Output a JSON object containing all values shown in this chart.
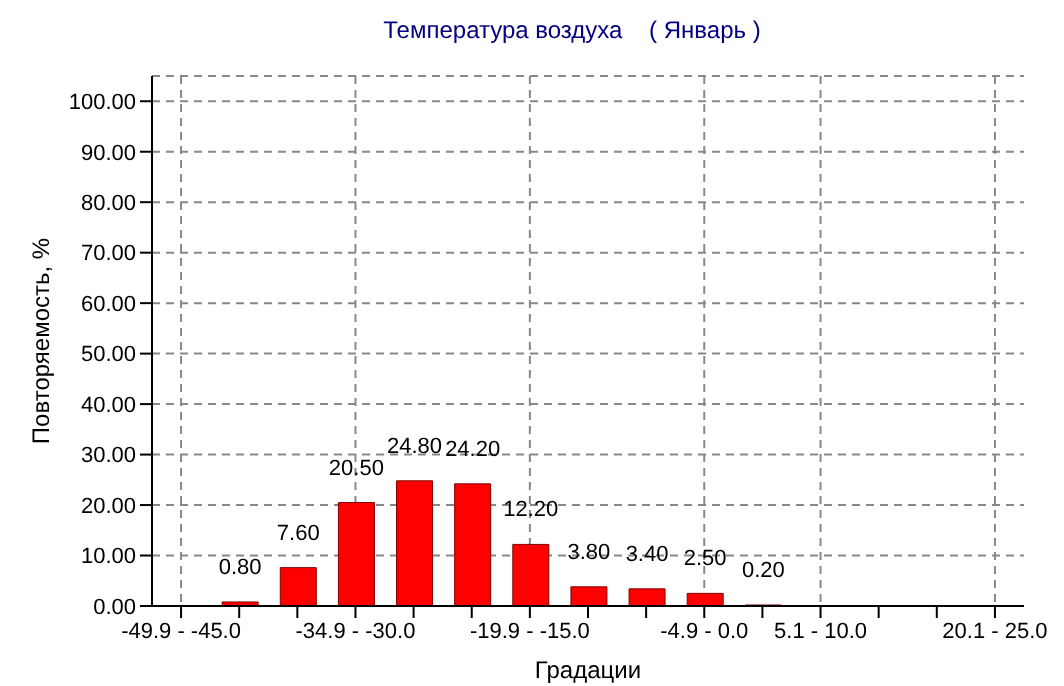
{
  "chart_data": {
    "type": "bar",
    "title": "Температура воздуха    ( Январь )",
    "xlabel": "Градации",
    "ylabel": "Повторяемость, %",
    "categories": [
      "-49.9 - -45.0",
      null,
      null,
      "-34.9 - -30.0",
      null,
      null,
      "-19.9 - -15.0",
      null,
      null,
      "-4.9 - 0.0",
      null,
      "5.1 - 10.0",
      null,
      null,
      "20.1 - 25.0"
    ],
    "values": [
      null,
      0.8,
      7.6,
      20.5,
      24.8,
      24.2,
      12.2,
      3.8,
      3.4,
      2.5,
      0.2,
      null,
      null,
      null,
      null
    ],
    "value_labels": [
      null,
      "0.80",
      "7.60",
      "20.50",
      "24.80",
      "24.20",
      "12.20",
      "3.80",
      "3.40",
      "2.50",
      "0.20",
      null,
      null,
      null,
      null
    ],
    "color": "#ff0000",
    "ylim": [
      0,
      105
    ],
    "yticks": [
      {
        "value": 0,
        "label": "0.00"
      },
      {
        "value": 10,
        "label": "10.00"
      },
      {
        "value": 20,
        "label": "20.00"
      },
      {
        "value": 30,
        "label": "30.00"
      },
      {
        "value": 40,
        "label": "40.00"
      },
      {
        "value": 50,
        "label": "50.00"
      },
      {
        "value": 60,
        "label": "60.00"
      },
      {
        "value": 70,
        "label": "70.00"
      },
      {
        "value": 80,
        "label": "80.00"
      },
      {
        "value": 90,
        "label": "90.00"
      },
      {
        "value": 100,
        "label": "100.00"
      }
    ],
    "grid": true,
    "legend": false
  }
}
